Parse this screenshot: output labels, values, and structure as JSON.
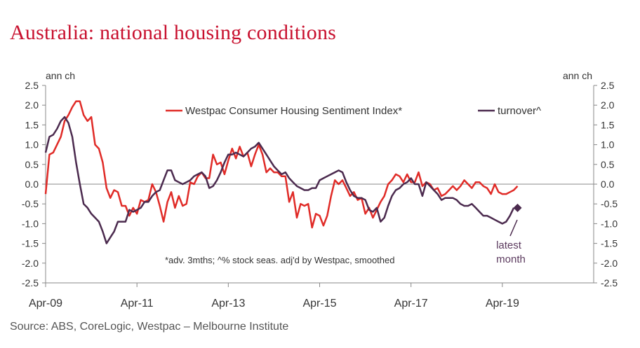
{
  "title": "Australia: national housing conditions",
  "source": "Source: ABS, CoreLogic, Westpac – Melbourne Institute",
  "colors": {
    "title": "#c8102e",
    "sentiment": "#e02b27",
    "turnover": "#4b2a4e",
    "axis": "#888888"
  },
  "chart_data": {
    "type": "line",
    "xlabel": "",
    "ylabel_left": "ann ch",
    "ylabel_right": "ann ch",
    "ylim": [
      -2.5,
      2.5
    ],
    "yticks": [
      "2.5",
      "2.0",
      "1.5",
      "1.0",
      "0.5",
      "0.0",
      "-0.5",
      "-1.0",
      "-1.5",
      "-2.0",
      "-2.5"
    ],
    "xlim": [
      "2009-04",
      "2021-04"
    ],
    "xticks": [
      "Apr-09",
      "Apr-11",
      "Apr-13",
      "Apr-15",
      "Apr-17",
      "Apr-19"
    ],
    "zero_line": true,
    "legend": [
      "Westpac Consumer Housing Sentiment Index*",
      "turnover^"
    ],
    "note": "*adv. 3mths;  ^% stock seas. adj'd by Westpac, smoothed",
    "annotation": [
      "latest",
      "month"
    ],
    "series": [
      {
        "name": "Westpac Consumer Housing Sentiment Index*",
        "color": "#e02b27",
        "points": [
          [
            "2009-04",
            -0.25
          ],
          [
            "2009-05",
            0.75
          ],
          [
            "2009-06",
            0.8
          ],
          [
            "2009-07",
            1.0
          ],
          [
            "2009-08",
            1.2
          ],
          [
            "2009-09",
            1.6
          ],
          [
            "2009-10",
            1.75
          ],
          [
            "2009-11",
            1.95
          ],
          [
            "2009-12",
            2.1
          ],
          [
            "2010-01",
            2.1
          ],
          [
            "2010-02",
            1.75
          ],
          [
            "2010-03",
            1.6
          ],
          [
            "2010-04",
            1.7
          ],
          [
            "2010-05",
            1.0
          ],
          [
            "2010-06",
            0.9
          ],
          [
            "2010-07",
            0.55
          ],
          [
            "2010-08",
            -0.1
          ],
          [
            "2010-09",
            -0.35
          ],
          [
            "2010-10",
            -0.15
          ],
          [
            "2010-11",
            -0.2
          ],
          [
            "2010-12",
            -0.55
          ],
          [
            "2011-01",
            -0.55
          ],
          [
            "2011-02",
            -0.8
          ],
          [
            "2011-03",
            -0.6
          ],
          [
            "2011-04",
            -0.75
          ],
          [
            "2011-05",
            -0.4
          ],
          [
            "2011-06",
            -0.45
          ],
          [
            "2011-07",
            -0.4
          ],
          [
            "2011-08",
            0.0
          ],
          [
            "2011-09",
            -0.2
          ],
          [
            "2011-10",
            -0.55
          ],
          [
            "2011-11",
            -0.95
          ],
          [
            "2011-12",
            -0.45
          ],
          [
            "2012-01",
            -0.2
          ],
          [
            "2012-02",
            -0.6
          ],
          [
            "2012-03",
            -0.3
          ],
          [
            "2012-04",
            -0.55
          ],
          [
            "2012-05",
            -0.5
          ],
          [
            "2012-06",
            0.05
          ],
          [
            "2012-07",
            0.0
          ],
          [
            "2012-08",
            0.2
          ],
          [
            "2012-09",
            0.3
          ],
          [
            "2012-10",
            0.15
          ],
          [
            "2012-11",
            0.15
          ],
          [
            "2012-12",
            0.75
          ],
          [
            "2013-01",
            0.5
          ],
          [
            "2013-02",
            0.55
          ],
          [
            "2013-03",
            0.25
          ],
          [
            "2013-04",
            0.6
          ],
          [
            "2013-05",
            0.9
          ],
          [
            "2013-06",
            0.65
          ],
          [
            "2013-07",
            0.95
          ],
          [
            "2013-08",
            0.7
          ],
          [
            "2013-09",
            0.8
          ],
          [
            "2013-10",
            0.45
          ],
          [
            "2013-11",
            0.75
          ],
          [
            "2013-12",
            1.0
          ],
          [
            "2014-01",
            0.75
          ],
          [
            "2014-02",
            0.3
          ],
          [
            "2014-03",
            0.4
          ],
          [
            "2014-04",
            0.3
          ],
          [
            "2014-05",
            0.3
          ],
          [
            "2014-06",
            0.2
          ],
          [
            "2014-07",
            0.2
          ],
          [
            "2014-08",
            -0.45
          ],
          [
            "2014-09",
            -0.2
          ],
          [
            "2014-10",
            -0.85
          ],
          [
            "2014-11",
            -0.5
          ],
          [
            "2014-12",
            -0.55
          ],
          [
            "2015-01",
            -0.5
          ],
          [
            "2015-02",
            -1.1
          ],
          [
            "2015-03",
            -0.75
          ],
          [
            "2015-04",
            -0.8
          ],
          [
            "2015-05",
            -1.05
          ],
          [
            "2015-06",
            -0.8
          ],
          [
            "2015-07",
            -0.3
          ],
          [
            "2015-08",
            0.1
          ],
          [
            "2015-09",
            0.0
          ],
          [
            "2015-10",
            0.1
          ],
          [
            "2015-11",
            -0.1
          ],
          [
            "2015-12",
            -0.3
          ],
          [
            "2016-01",
            -0.2
          ],
          [
            "2016-02",
            -0.4
          ],
          [
            "2016-03",
            -0.35
          ],
          [
            "2016-04",
            -0.75
          ],
          [
            "2016-05",
            -0.6
          ],
          [
            "2016-06",
            -0.85
          ],
          [
            "2016-07",
            -0.65
          ],
          [
            "2016-08",
            -0.45
          ],
          [
            "2016-09",
            -0.3
          ],
          [
            "2016-10",
            0.0
          ],
          [
            "2016-11",
            0.1
          ],
          [
            "2016-12",
            0.25
          ],
          [
            "2017-01",
            0.2
          ],
          [
            "2017-02",
            0.05
          ],
          [
            "2017-03",
            0.25
          ],
          [
            "2017-04",
            0.05
          ],
          [
            "2017-05",
            0.05
          ],
          [
            "2017-06",
            0.3
          ],
          [
            "2017-07",
            -0.05
          ],
          [
            "2017-08",
            0.05
          ],
          [
            "2017-09",
            0.0
          ],
          [
            "2017-10",
            -0.15
          ],
          [
            "2017-11",
            -0.1
          ],
          [
            "2017-12",
            -0.3
          ],
          [
            "2018-01",
            -0.25
          ],
          [
            "2018-02",
            -0.15
          ],
          [
            "2018-03",
            -0.05
          ],
          [
            "2018-04",
            -0.15
          ],
          [
            "2018-05",
            -0.05
          ],
          [
            "2018-06",
            0.1
          ],
          [
            "2018-07",
            0.0
          ],
          [
            "2018-08",
            -0.1
          ],
          [
            "2018-09",
            0.05
          ],
          [
            "2018-10",
            0.05
          ],
          [
            "2018-11",
            -0.05
          ],
          [
            "2018-12",
            -0.1
          ],
          [
            "2019-01",
            -0.25
          ],
          [
            "2019-02",
            0.0
          ],
          [
            "2019-03",
            -0.2
          ],
          [
            "2019-04",
            -0.25
          ],
          [
            "2019-05",
            -0.25
          ],
          [
            "2019-06",
            -0.2
          ],
          [
            "2019-07",
            -0.15
          ],
          [
            "2019-08",
            -0.05
          ]
        ]
      },
      {
        "name": "turnover^",
        "color": "#4b2a4e",
        "points": [
          [
            "2009-04",
            0.8
          ],
          [
            "2009-05",
            1.2
          ],
          [
            "2009-06",
            1.25
          ],
          [
            "2009-07",
            1.4
          ],
          [
            "2009-08",
            1.6
          ],
          [
            "2009-09",
            1.7
          ],
          [
            "2009-10",
            1.55
          ],
          [
            "2009-11",
            1.2
          ],
          [
            "2009-12",
            0.55
          ],
          [
            "2010-01",
            0.0
          ],
          [
            "2010-02",
            -0.5
          ],
          [
            "2010-03",
            -0.6
          ],
          [
            "2010-04",
            -0.75
          ],
          [
            "2010-05",
            -0.85
          ],
          [
            "2010-06",
            -0.95
          ],
          [
            "2010-07",
            -1.2
          ],
          [
            "2010-08",
            -1.5
          ],
          [
            "2010-09",
            -1.35
          ],
          [
            "2010-10",
            -1.2
          ],
          [
            "2010-11",
            -0.95
          ],
          [
            "2010-12",
            -0.95
          ],
          [
            "2011-01",
            -0.95
          ],
          [
            "2011-02",
            -0.65
          ],
          [
            "2011-03",
            -0.7
          ],
          [
            "2011-04",
            -0.65
          ],
          [
            "2011-05",
            -0.6
          ],
          [
            "2011-06",
            -0.45
          ],
          [
            "2011-07",
            -0.45
          ],
          [
            "2011-08",
            -0.3
          ],
          [
            "2011-09",
            -0.2
          ],
          [
            "2011-10",
            -0.15
          ],
          [
            "2011-11",
            0.1
          ],
          [
            "2011-12",
            0.35
          ],
          [
            "2012-01",
            0.35
          ],
          [
            "2012-02",
            0.1
          ],
          [
            "2012-03",
            0.05
          ],
          [
            "2012-04",
            0.0
          ],
          [
            "2012-05",
            0.05
          ],
          [
            "2012-06",
            0.1
          ],
          [
            "2012-07",
            0.2
          ],
          [
            "2012-08",
            0.25
          ],
          [
            "2012-09",
            0.3
          ],
          [
            "2012-10",
            0.2
          ],
          [
            "2012-11",
            -0.1
          ],
          [
            "2012-12",
            -0.05
          ],
          [
            "2013-01",
            0.1
          ],
          [
            "2013-02",
            0.3
          ],
          [
            "2013-03",
            0.55
          ],
          [
            "2013-04",
            0.75
          ],
          [
            "2013-05",
            0.75
          ],
          [
            "2013-06",
            0.8
          ],
          [
            "2013-07",
            0.75
          ],
          [
            "2013-08",
            0.7
          ],
          [
            "2013-09",
            0.8
          ],
          [
            "2013-10",
            0.9
          ],
          [
            "2013-11",
            0.95
          ],
          [
            "2013-12",
            1.05
          ],
          [
            "2014-01",
            0.9
          ],
          [
            "2014-02",
            0.75
          ],
          [
            "2014-03",
            0.6
          ],
          [
            "2014-04",
            0.45
          ],
          [
            "2014-05",
            0.35
          ],
          [
            "2014-06",
            0.25
          ],
          [
            "2014-07",
            0.3
          ],
          [
            "2014-08",
            0.15
          ],
          [
            "2014-09",
            0.05
          ],
          [
            "2014-10",
            -0.05
          ],
          [
            "2014-11",
            -0.1
          ],
          [
            "2014-12",
            -0.15
          ],
          [
            "2015-01",
            -0.15
          ],
          [
            "2015-02",
            -0.1
          ],
          [
            "2015-03",
            -0.1
          ],
          [
            "2015-04",
            0.1
          ],
          [
            "2015-05",
            0.15
          ],
          [
            "2015-06",
            0.2
          ],
          [
            "2015-07",
            0.25
          ],
          [
            "2015-08",
            0.3
          ],
          [
            "2015-09",
            0.35
          ],
          [
            "2015-10",
            0.3
          ],
          [
            "2015-11",
            0.05
          ],
          [
            "2015-12",
            -0.15
          ],
          [
            "2016-01",
            -0.3
          ],
          [
            "2016-02",
            -0.35
          ],
          [
            "2016-03",
            -0.35
          ],
          [
            "2016-04",
            -0.4
          ],
          [
            "2016-05",
            -0.65
          ],
          [
            "2016-06",
            -0.7
          ],
          [
            "2016-07",
            -0.6
          ],
          [
            "2016-08",
            -0.95
          ],
          [
            "2016-09",
            -0.85
          ],
          [
            "2016-10",
            -0.55
          ],
          [
            "2016-11",
            -0.3
          ],
          [
            "2016-12",
            -0.15
          ],
          [
            "2017-01",
            -0.1
          ],
          [
            "2017-02",
            0.0
          ],
          [
            "2017-03",
            0.05
          ],
          [
            "2017-04",
            0.15
          ],
          [
            "2017-05",
            0.0
          ],
          [
            "2017-06",
            0.0
          ],
          [
            "2017-07",
            -0.3
          ],
          [
            "2017-08",
            0.05
          ],
          [
            "2017-09",
            -0.05
          ],
          [
            "2017-10",
            -0.15
          ],
          [
            "2017-11",
            -0.25
          ],
          [
            "2017-12",
            -0.4
          ],
          [
            "2018-01",
            -0.35
          ],
          [
            "2018-02",
            -0.35
          ],
          [
            "2018-03",
            -0.35
          ],
          [
            "2018-04",
            -0.4
          ],
          [
            "2018-05",
            -0.5
          ],
          [
            "2018-06",
            -0.55
          ],
          [
            "2018-07",
            -0.55
          ],
          [
            "2018-08",
            -0.5
          ],
          [
            "2018-09",
            -0.6
          ],
          [
            "2018-10",
            -0.7
          ],
          [
            "2018-11",
            -0.8
          ],
          [
            "2018-12",
            -0.8
          ],
          [
            "2019-01",
            -0.85
          ],
          [
            "2019-02",
            -0.9
          ],
          [
            "2019-03",
            -0.95
          ],
          [
            "2019-04",
            -1.0
          ],
          [
            "2019-05",
            -0.95
          ],
          [
            "2019-06",
            -0.8
          ],
          [
            "2019-07",
            -0.6
          ]
        ]
      }
    ],
    "latest_marker": {
      "series": "turnover^",
      "x": "2019-08",
      "y": -0.6
    }
  }
}
